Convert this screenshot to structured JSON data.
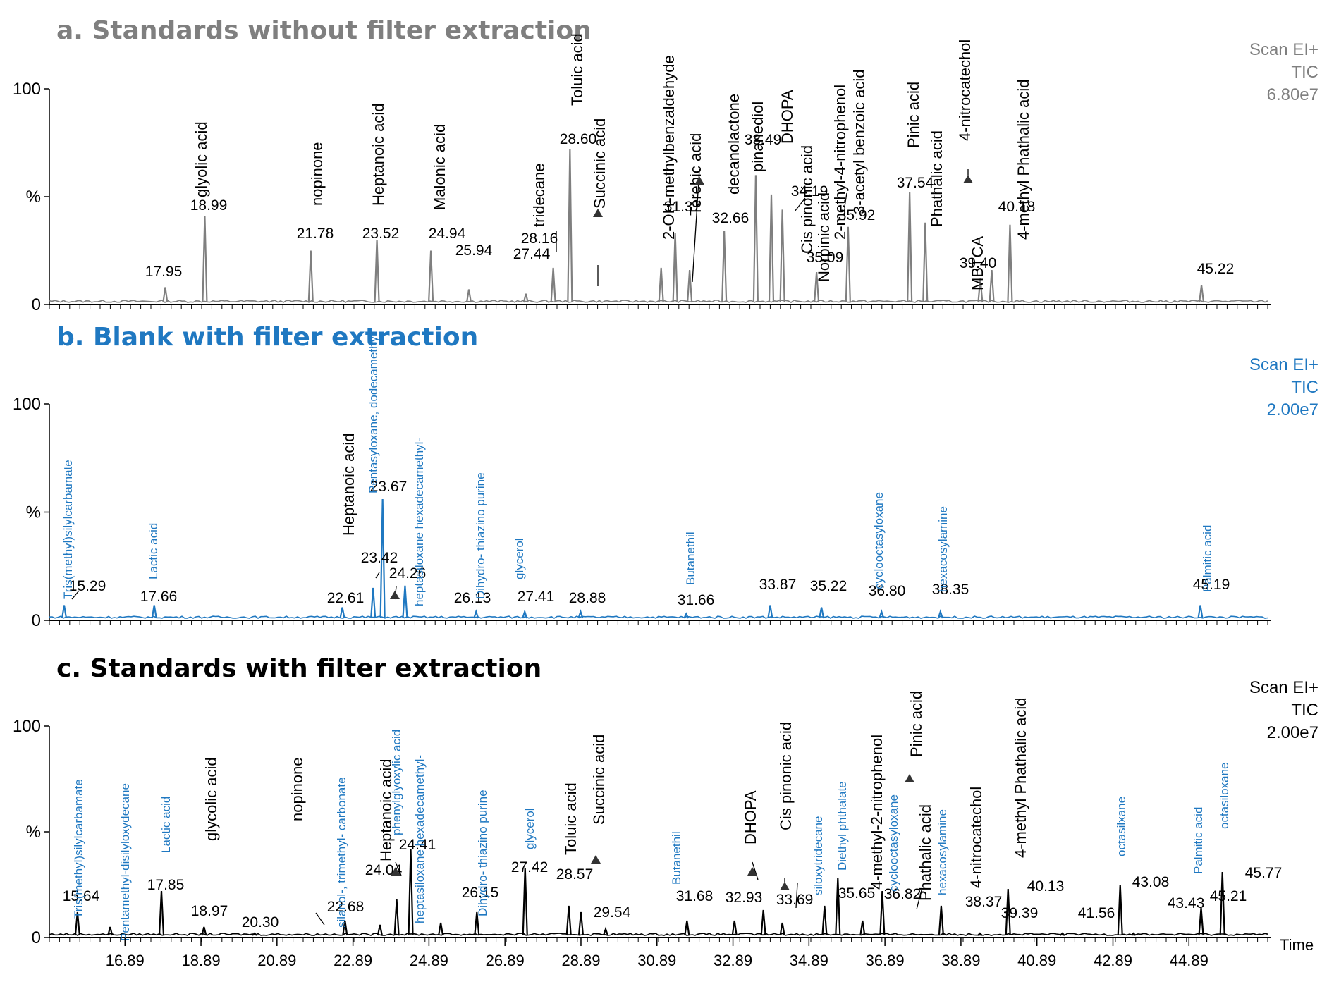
{
  "chart_data": [
    {
      "type": "line",
      "title": "a. Standards without filter extraction",
      "color": "#7f7f7f",
      "scan_info": [
        "Scan EI+",
        "TIC",
        "6.80e7"
      ],
      "yticks": [
        "100",
        "%",
        "0"
      ],
      "ylim": [
        0,
        100
      ],
      "xlim": [
        14.9,
        47.0
      ],
      "peaks": [
        {
          "x": 17.95,
          "y": 8
        },
        {
          "x": 18.99,
          "y": 41
        },
        {
          "x": 21.78,
          "y": 25
        },
        {
          "x": 23.52,
          "y": 30
        },
        {
          "x": 24.94,
          "y": 25
        },
        {
          "x": 25.94,
          "y": 7
        },
        {
          "x": 27.44,
          "y": 5
        },
        {
          "x": 28.16,
          "y": 17
        },
        {
          "x": 28.6,
          "y": 72
        },
        {
          "x": 31.0,
          "y": 17
        },
        {
          "x": 31.37,
          "y": 33
        },
        {
          "x": 31.75,
          "y": 16
        },
        {
          "x": 32.66,
          "y": 34
        },
        {
          "x": 33.49,
          "y": 60
        },
        {
          "x": 33.9,
          "y": 51
        },
        {
          "x": 34.19,
          "y": 44
        },
        {
          "x": 35.09,
          "y": 15
        },
        {
          "x": 35.92,
          "y": 36
        },
        {
          "x": 37.54,
          "y": 52
        },
        {
          "x": 37.95,
          "y": 38
        },
        {
          "x": 39.4,
          "y": 12
        },
        {
          "x": 39.7,
          "y": 16
        },
        {
          "x": 40.18,
          "y": 37
        },
        {
          "x": 45.22,
          "y": 9
        }
      ],
      "rt_labels": [
        "17.95",
        "18.99",
        "21.78",
        "23.52",
        "24.94",
        "25.94",
        "27.44",
        "28.16",
        "28.60",
        "31.37",
        "32.66",
        "33.49",
        "34.19",
        "35.09",
        "35.92",
        "37.54",
        "39.40",
        "40.18",
        "45.22"
      ],
      "compound_labels": [
        "glyolic acid",
        "nopinone",
        "Heptanoic acid",
        "Malonic acid",
        "tridecane",
        "Toluic acid",
        "Succinic acid",
        "2-OH-methylbenzaldehyde",
        "Terebic acid",
        "decanolactone",
        "pinanediol",
        "DHOPA",
        "Cis pinonic acid",
        "Norpinic acid",
        "2-methyl-4-nitrophenol",
        "3-acetyl benzoic acid",
        "Pinic acid",
        "Phathalic acid",
        "4-nitrocatechol",
        "MBTCA",
        "4-methyl Phathalic acid"
      ]
    },
    {
      "type": "line",
      "title": "b. Blank with filter extraction",
      "color": "#1f78c1",
      "scan_info": [
        "Scan EI+",
        "TIC",
        "2.00e7"
      ],
      "yticks": [
        "100",
        "%",
        "0"
      ],
      "ylim": [
        0,
        100
      ],
      "xlim": [
        14.9,
        47.0
      ],
      "peaks": [
        {
          "x": 15.29,
          "y": 7
        },
        {
          "x": 17.66,
          "y": 7
        },
        {
          "x": 22.61,
          "y": 6
        },
        {
          "x": 23.42,
          "y": 15
        },
        {
          "x": 23.67,
          "y": 56
        },
        {
          "x": 24.26,
          "y": 16
        },
        {
          "x": 26.13,
          "y": 4
        },
        {
          "x": 27.41,
          "y": 4
        },
        {
          "x": 28.88,
          "y": 4
        },
        {
          "x": 31.66,
          "y": 3
        },
        {
          "x": 33.87,
          "y": 7
        },
        {
          "x": 35.22,
          "y": 6
        },
        {
          "x": 36.8,
          "y": 4
        },
        {
          "x": 38.35,
          "y": 4
        },
        {
          "x": 45.19,
          "y": 7
        }
      ],
      "rt_labels": [
        "15.29",
        "17.66",
        "22.61",
        "23.42",
        "23.67",
        "24.26",
        "26.13",
        "27.41",
        "28.88",
        "31.66",
        "33.87",
        "35.22",
        "36.80",
        "38.35",
        "45.19"
      ],
      "compound_labels": [
        "Tris(methyl)silylcarbamate",
        "Lactic acid",
        "Heptanoic acid",
        "Pentasyloxane, dodecamethyl",
        "heptasiloxane hexadecamethyl-",
        "Dihydro- thiazino purine",
        "glycerol",
        "Butanethil",
        "cyclooctasyloxane",
        "hexacosylamine",
        "Palmitic acid"
      ]
    },
    {
      "type": "line",
      "title": "c. Standards with filter extraction",
      "color": "#000000",
      "scan_info": [
        "Scan EI+",
        "TIC",
        "2.00e7"
      ],
      "yticks": [
        "100",
        "%",
        "0"
      ],
      "ylim": [
        0,
        100
      ],
      "xlim": [
        14.9,
        47.0
      ],
      "xticks": [
        "16.89",
        "18.89",
        "20.89",
        "22.89",
        "24.89",
        "26.89",
        "28.89",
        "30.89",
        "32.89",
        "34.89",
        "36.89",
        "38.89",
        "40.89",
        "42.89",
        "44.89"
      ],
      "xlabel": "Time",
      "peaks": [
        {
          "x": 15.64,
          "y": 12
        },
        {
          "x": 16.5,
          "y": 5
        },
        {
          "x": 17.85,
          "y": 22
        },
        {
          "x": 18.97,
          "y": 5
        },
        {
          "x": 20.3,
          "y": 2
        },
        {
          "x": 22.68,
          "y": 8
        },
        {
          "x": 23.6,
          "y": 6
        },
        {
          "x": 24.04,
          "y": 18
        },
        {
          "x": 24.41,
          "y": 42
        },
        {
          "x": 25.2,
          "y": 7
        },
        {
          "x": 26.15,
          "y": 12
        },
        {
          "x": 27.42,
          "y": 33
        },
        {
          "x": 28.57,
          "y": 15
        },
        {
          "x": 28.89,
          "y": 12
        },
        {
          "x": 29.54,
          "y": 4
        },
        {
          "x": 31.68,
          "y": 8
        },
        {
          "x": 32.93,
          "y": 8
        },
        {
          "x": 33.69,
          "y": 13
        },
        {
          "x": 34.19,
          "y": 7
        },
        {
          "x": 35.3,
          "y": 15
        },
        {
          "x": 35.65,
          "y": 28
        },
        {
          "x": 36.3,
          "y": 8
        },
        {
          "x": 36.82,
          "y": 22
        },
        {
          "x": 38.37,
          "y": 15
        },
        {
          "x": 39.39,
          "y": 2
        },
        {
          "x": 40.13,
          "y": 23
        },
        {
          "x": 41.56,
          "y": 2
        },
        {
          "x": 43.08,
          "y": 25
        },
        {
          "x": 43.43,
          "y": 2
        },
        {
          "x": 45.21,
          "y": 14
        },
        {
          "x": 45.77,
          "y": 31
        }
      ],
      "rt_labels": [
        "15.64",
        "17.85",
        "18.97",
        "20.30",
        "22.68",
        "24.04",
        "24.41",
        "26.15",
        "27.42",
        "28.57",
        "29.54",
        "31.68",
        "32.93",
        "33.69",
        "35.65",
        "36.82",
        "38.37",
        "39.39",
        "40.13",
        "41.56",
        "43.08",
        "43.43",
        "45.21",
        "45.77"
      ],
      "compound_labels": [
        "glycolic acid",
        "nopinone",
        "Heptanoic acid",
        "Toluic acid",
        "Succinic acid",
        "DHOPA",
        "Cis pinonic acid",
        "4-methyl-2-nitrophenol",
        "Pinic acid",
        "Phathalic acid",
        "4-nitrocatechol",
        "4-methyl Phathalic acid"
      ],
      "blue_labels": [
        "Tris(methyl)silylcarbamate",
        "Pentamethyl-disilyloxydecane",
        "Lactic acid",
        "silanol-, trimethyl- carbonate",
        "phenylglyoxylic acid",
        "heptasiloxane hexadecamethyl-",
        "Dihydro- thiazino purine",
        "glycerol",
        "Butanethil",
        "siloxytridecane",
        "Diethyl phthalate",
        "cyclooctasyloxane",
        "hexacosylamine",
        "octasilxane",
        "Palmitic acid",
        "octasiloxane"
      ]
    }
  ]
}
